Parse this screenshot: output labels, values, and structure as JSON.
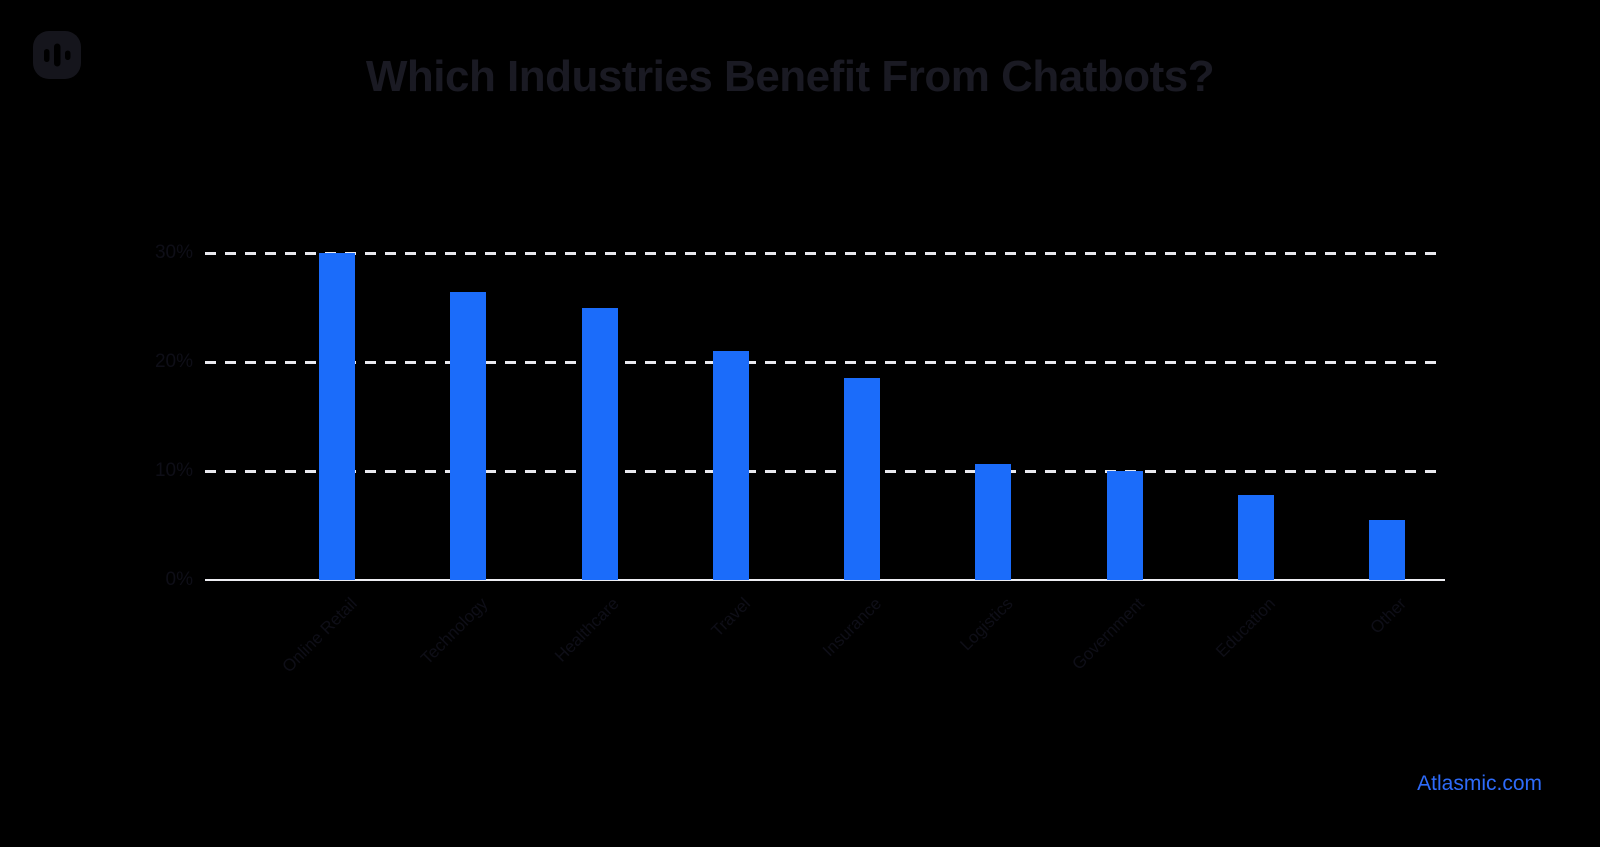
{
  "title": "Which Industries Benefit From Chatbots?",
  "logo": {
    "name": "atlasmic-logo"
  },
  "footer": {
    "brand": "Atlasmic.com",
    "link_color": "#2e6bfa"
  },
  "colors": {
    "background": "#000000",
    "bar": "#1b6cfa",
    "gridline": "#e9e9ee",
    "axis_line": "#ededf2",
    "title_text": "#1a1a23",
    "tick_text": "#0e0e17"
  },
  "chart_data": {
    "type": "bar",
    "title": "Which Industries Benefit From Chatbots?",
    "categories": [
      "Online Retail",
      "Technology",
      "Healthcare",
      "Travel",
      "Insurance",
      "Logistics",
      "Government",
      "Education",
      "Other"
    ],
    "values": [
      30,
      26.4,
      25,
      21,
      18.5,
      10.6,
      10,
      7.8,
      5.5
    ],
    "unit": "%",
    "xlabel": "",
    "ylabel": "",
    "ylim": [
      0,
      30
    ],
    "yticks": [
      {
        "value": 30,
        "label": "30%"
      },
      {
        "value": 20,
        "label": "20%"
      },
      {
        "value": 10,
        "label": "10%"
      },
      {
        "value": 0,
        "label": "0%"
      }
    ],
    "grid": "horizontal-dashed",
    "legend": "none",
    "bar_color": "#1b6cfa"
  }
}
